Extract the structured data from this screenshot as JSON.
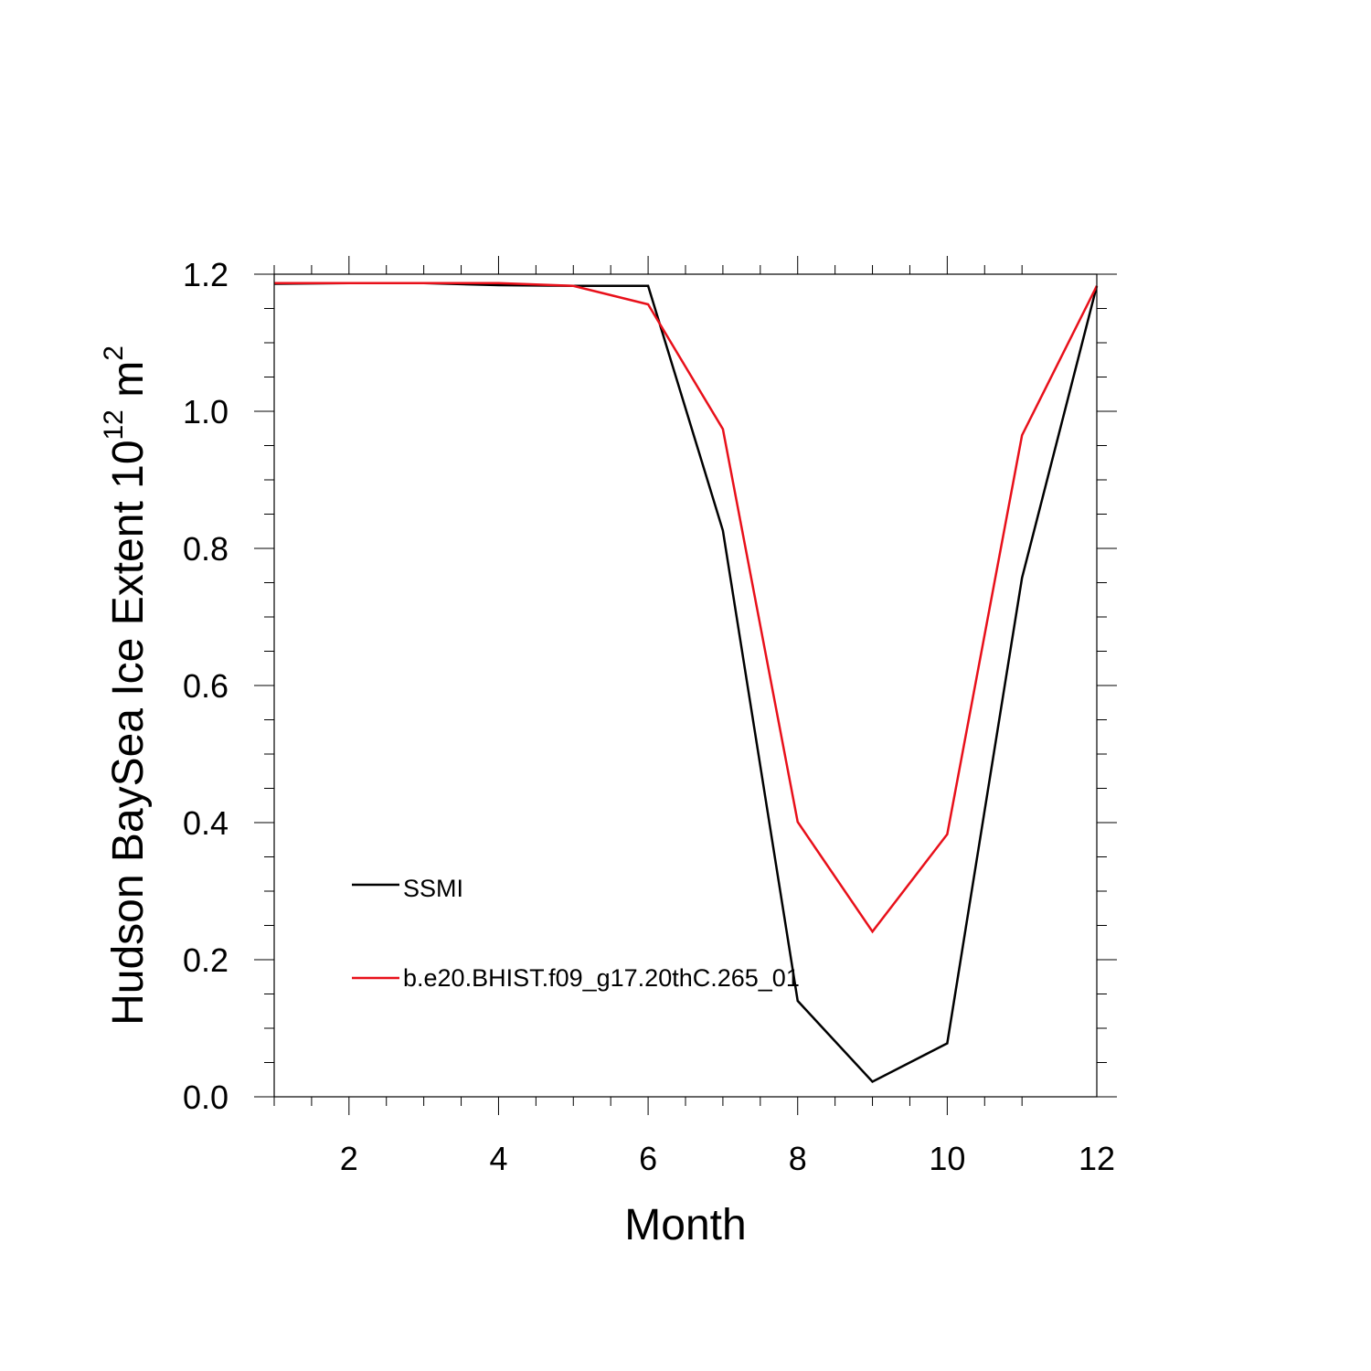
{
  "chart_data": {
    "type": "line",
    "title": "",
    "xlabel": "Month",
    "ylabel": {
      "text": "Hudson BaySea Ice Extent 10",
      "superscript": "12",
      "unit_text": " m",
      "unit_superscript": "2"
    },
    "xlim": [
      1,
      12
    ],
    "ylim": [
      0,
      1.2
    ],
    "x_ticks": [
      2,
      4,
      6,
      8,
      10,
      12
    ],
    "x_tick_labels": [
      "2",
      "4",
      "6",
      "8",
      "10",
      "12"
    ],
    "y_ticks": [
      0.0,
      0.2,
      0.4,
      0.6,
      0.8,
      1.0,
      1.2
    ],
    "y_tick_labels": [
      "0.0",
      "0.2",
      "0.4",
      "0.6",
      "0.8",
      "1.0",
      "1.2"
    ],
    "x": [
      1,
      2,
      3,
      4,
      5,
      6,
      7,
      8,
      9,
      10,
      11,
      12
    ],
    "grid": false,
    "legend_position": "lower-left",
    "series": [
      {
        "name": "SSMI",
        "color": "#000000",
        "values": [
          1.186,
          1.187,
          1.187,
          1.184,
          1.183,
          1.183,
          0.826,
          0.14,
          0.022,
          0.078,
          0.757,
          1.183
        ]
      },
      {
        "name": "b.e20.BHIST.f09_g17.20thC.265_01",
        "color": "#e8101a",
        "values": [
          1.187,
          1.187,
          1.187,
          1.187,
          1.183,
          1.156,
          0.974,
          0.401,
          0.241,
          0.383,
          0.965,
          1.183
        ]
      }
    ]
  }
}
